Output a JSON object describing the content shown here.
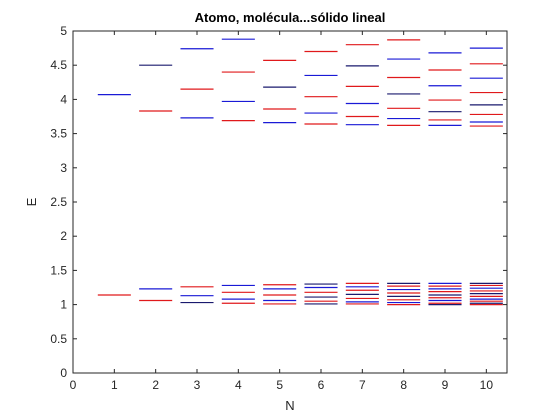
{
  "chart_data": {
    "type": "line",
    "title": "Atomo, molécula...sólido lineal",
    "xlabel": "N",
    "ylabel": "E",
    "xlim": [
      0,
      10.5
    ],
    "ylim": [
      0,
      5
    ],
    "xticks": [
      "0",
      "1",
      "2",
      "3",
      "4",
      "5",
      "6",
      "7",
      "8",
      "9",
      "10"
    ],
    "yticks": [
      "0",
      "0.5",
      "1",
      "1.5",
      "2",
      "2.5",
      "3",
      "3.5",
      "4",
      "4.5",
      "5"
    ],
    "grid": false,
    "level_halfwidth": 0.4,
    "colors": {
      "blue": "#1a1ad6",
      "red": "#e0191b",
      "navy": "#1a1a6e"
    },
    "levels": [
      {
        "N": 1,
        "E": 1.14,
        "color": "red"
      },
      {
        "N": 1,
        "E": 4.07,
        "color": "blue"
      },
      {
        "N": 2,
        "E": 1.06,
        "color": "red"
      },
      {
        "N": 2,
        "E": 1.23,
        "color": "blue"
      },
      {
        "N": 2,
        "E": 3.83,
        "color": "red"
      },
      {
        "N": 2,
        "E": 4.5,
        "color": "navy"
      },
      {
        "N": 3,
        "E": 1.03,
        "color": "navy"
      },
      {
        "N": 3,
        "E": 1.13,
        "color": "blue"
      },
      {
        "N": 3,
        "E": 1.26,
        "color": "red"
      },
      {
        "N": 3,
        "E": 3.73,
        "color": "blue"
      },
      {
        "N": 3,
        "E": 4.15,
        "color": "red"
      },
      {
        "N": 3,
        "E": 4.74,
        "color": "blue"
      },
      {
        "N": 4,
        "E": 1.02,
        "color": "red"
      },
      {
        "N": 4,
        "E": 1.08,
        "color": "blue"
      },
      {
        "N": 4,
        "E": 1.18,
        "color": "red"
      },
      {
        "N": 4,
        "E": 1.28,
        "color": "blue"
      },
      {
        "N": 4,
        "E": 3.69,
        "color": "red"
      },
      {
        "N": 4,
        "E": 3.97,
        "color": "blue"
      },
      {
        "N": 4,
        "E": 4.4,
        "color": "red"
      },
      {
        "N": 4,
        "E": 4.88,
        "color": "blue"
      },
      {
        "N": 5,
        "E": 1.01,
        "color": "red"
      },
      {
        "N": 5,
        "E": 1.06,
        "color": "blue"
      },
      {
        "N": 5,
        "E": 1.14,
        "color": "red"
      },
      {
        "N": 5,
        "E": 1.23,
        "color": "blue"
      },
      {
        "N": 5,
        "E": 1.29,
        "color": "red"
      },
      {
        "N": 5,
        "E": 3.66,
        "color": "blue"
      },
      {
        "N": 5,
        "E": 3.86,
        "color": "red"
      },
      {
        "N": 5,
        "E": 4.18,
        "color": "navy"
      },
      {
        "N": 5,
        "E": 4.57,
        "color": "red"
      },
      {
        "N": 6,
        "E": 1.01,
        "color": "navy"
      },
      {
        "N": 6,
        "E": 1.05,
        "color": "red"
      },
      {
        "N": 6,
        "E": 1.11,
        "color": "navy"
      },
      {
        "N": 6,
        "E": 1.18,
        "color": "red"
      },
      {
        "N": 6,
        "E": 1.25,
        "color": "blue"
      },
      {
        "N": 6,
        "E": 1.3,
        "color": "navy"
      },
      {
        "N": 6,
        "E": 3.64,
        "color": "red"
      },
      {
        "N": 6,
        "E": 3.8,
        "color": "blue"
      },
      {
        "N": 6,
        "E": 4.04,
        "color": "red"
      },
      {
        "N": 6,
        "E": 4.35,
        "color": "blue"
      },
      {
        "N": 6,
        "E": 4.7,
        "color": "red"
      },
      {
        "N": 7,
        "E": 1.01,
        "color": "red"
      },
      {
        "N": 7,
        "E": 1.04,
        "color": "blue"
      },
      {
        "N": 7,
        "E": 1.09,
        "color": "red"
      },
      {
        "N": 7,
        "E": 1.15,
        "color": "navy"
      },
      {
        "N": 7,
        "E": 1.21,
        "color": "red"
      },
      {
        "N": 7,
        "E": 1.26,
        "color": "blue"
      },
      {
        "N": 7,
        "E": 1.31,
        "color": "red"
      },
      {
        "N": 7,
        "E": 3.63,
        "color": "blue"
      },
      {
        "N": 7,
        "E": 3.75,
        "color": "red"
      },
      {
        "N": 7,
        "E": 3.94,
        "color": "blue"
      },
      {
        "N": 7,
        "E": 4.19,
        "color": "red"
      },
      {
        "N": 7,
        "E": 4.49,
        "color": "navy"
      },
      {
        "N": 7,
        "E": 4.8,
        "color": "red"
      },
      {
        "N": 8,
        "E": 1.0,
        "color": "red"
      },
      {
        "N": 8,
        "E": 1.03,
        "color": "blue"
      },
      {
        "N": 8,
        "E": 1.07,
        "color": "red"
      },
      {
        "N": 8,
        "E": 1.12,
        "color": "navy"
      },
      {
        "N": 8,
        "E": 1.17,
        "color": "red"
      },
      {
        "N": 8,
        "E": 1.22,
        "color": "blue"
      },
      {
        "N": 8,
        "E": 1.27,
        "color": "red"
      },
      {
        "N": 8,
        "E": 1.31,
        "color": "navy"
      },
      {
        "N": 8,
        "E": 3.62,
        "color": "red"
      },
      {
        "N": 8,
        "E": 3.72,
        "color": "blue"
      },
      {
        "N": 8,
        "E": 3.87,
        "color": "red"
      },
      {
        "N": 8,
        "E": 4.08,
        "color": "navy"
      },
      {
        "N": 8,
        "E": 4.32,
        "color": "red"
      },
      {
        "N": 8,
        "E": 4.59,
        "color": "blue"
      },
      {
        "N": 8,
        "E": 4.87,
        "color": "red"
      },
      {
        "N": 9,
        "E": 1.0,
        "color": "navy"
      },
      {
        "N": 9,
        "E": 1.02,
        "color": "red"
      },
      {
        "N": 9,
        "E": 1.06,
        "color": "blue"
      },
      {
        "N": 9,
        "E": 1.1,
        "color": "red"
      },
      {
        "N": 9,
        "E": 1.14,
        "color": "navy"
      },
      {
        "N": 9,
        "E": 1.19,
        "color": "red"
      },
      {
        "N": 9,
        "E": 1.23,
        "color": "blue"
      },
      {
        "N": 9,
        "E": 1.27,
        "color": "red"
      },
      {
        "N": 9,
        "E": 1.31,
        "color": "blue"
      },
      {
        "N": 9,
        "E": 3.62,
        "color": "blue"
      },
      {
        "N": 9,
        "E": 3.7,
        "color": "red"
      },
      {
        "N": 9,
        "E": 3.82,
        "color": "navy"
      },
      {
        "N": 9,
        "E": 3.99,
        "color": "red"
      },
      {
        "N": 9,
        "E": 4.2,
        "color": "blue"
      },
      {
        "N": 9,
        "E": 4.43,
        "color": "red"
      },
      {
        "N": 9,
        "E": 4.68,
        "color": "blue"
      },
      {
        "N": 10,
        "E": 1.0,
        "color": "red"
      },
      {
        "N": 10,
        "E": 1.02,
        "color": "navy"
      },
      {
        "N": 10,
        "E": 1.05,
        "color": "red"
      },
      {
        "N": 10,
        "E": 1.08,
        "color": "blue"
      },
      {
        "N": 10,
        "E": 1.12,
        "color": "red"
      },
      {
        "N": 10,
        "E": 1.16,
        "color": "navy"
      },
      {
        "N": 10,
        "E": 1.2,
        "color": "red"
      },
      {
        "N": 10,
        "E": 1.24,
        "color": "blue"
      },
      {
        "N": 10,
        "E": 1.28,
        "color": "red"
      },
      {
        "N": 10,
        "E": 1.31,
        "color": "navy"
      },
      {
        "N": 10,
        "E": 3.61,
        "color": "red"
      },
      {
        "N": 10,
        "E": 3.67,
        "color": "blue"
      },
      {
        "N": 10,
        "E": 3.78,
        "color": "red"
      },
      {
        "N": 10,
        "E": 3.92,
        "color": "navy"
      },
      {
        "N": 10,
        "E": 4.1,
        "color": "red"
      },
      {
        "N": 10,
        "E": 4.31,
        "color": "blue"
      },
      {
        "N": 10,
        "E": 4.52,
        "color": "red"
      },
      {
        "N": 10,
        "E": 4.75,
        "color": "blue"
      }
    ]
  }
}
